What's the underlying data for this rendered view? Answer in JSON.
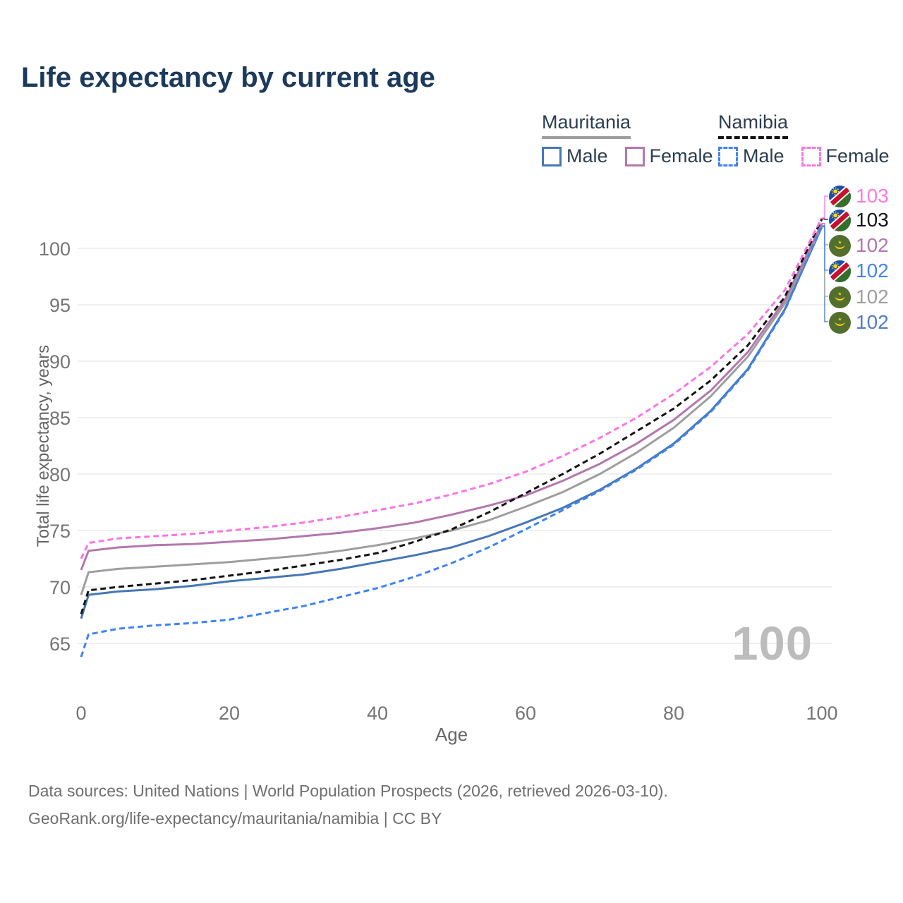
{
  "title": "Life expectancy by current age",
  "legend": {
    "groups": [
      {
        "label": "Mauritania",
        "line": "solid",
        "underline_color": "#9e9e9e",
        "items": [
          {
            "label": "Male",
            "color": "#4577b6"
          },
          {
            "label": "Female",
            "color": "#b377ae"
          }
        ]
      },
      {
        "label": "Namibia",
        "line": "dashed",
        "underline_color": "#141414",
        "items": [
          {
            "label": "Male",
            "color": "#3f83f2"
          },
          {
            "label": "Female",
            "color": "#fc74e4"
          }
        ]
      }
    ]
  },
  "chart_data": {
    "type": "line",
    "title": "Life expectancy by current age",
    "xlabel": "Age",
    "ylabel": "Total life expectancy, years",
    "xlim": [
      0,
      100
    ],
    "ylim": [
      63,
      104
    ],
    "xticks": [
      0,
      20,
      40,
      60,
      80,
      100
    ],
    "yticks": [
      65,
      70,
      75,
      80,
      85,
      90,
      95,
      100
    ],
    "grid": "horizontal",
    "legend_position": "top-right",
    "x": [
      0,
      1,
      5,
      10,
      15,
      20,
      25,
      30,
      35,
      40,
      45,
      50,
      55,
      60,
      65,
      70,
      75,
      80,
      85,
      90,
      95,
      100
    ],
    "series": [
      {
        "name": "Namibia Female",
        "country": "Namibia",
        "sex": "female",
        "line": "dashed",
        "color": "#fc74e4",
        "label_color": "#fb7ade",
        "flag": "namibia",
        "end_label": "103",
        "values": [
          72.5,
          73.9,
          74.3,
          74.5,
          74.7,
          75.0,
          75.3,
          75.7,
          76.2,
          76.8,
          77.4,
          78.2,
          79.1,
          80.2,
          81.6,
          83.2,
          85.0,
          87.1,
          89.5,
          92.4,
          96.3,
          102.7
        ]
      },
      {
        "name": "Namibia",
        "country": "Namibia",
        "sex": "both",
        "line": "dashed",
        "color": "#141414",
        "label_color": "#141414",
        "flag": "namibia",
        "end_label": "103",
        "values": [
          67.6,
          69.7,
          70.0,
          70.3,
          70.6,
          71.0,
          71.4,
          71.9,
          72.4,
          73.0,
          74.0,
          75.1,
          76.6,
          78.3,
          80.0,
          81.8,
          83.8,
          85.8,
          88.3,
          91.4,
          95.7,
          102.6
        ]
      },
      {
        "name": "Mauritania Female",
        "country": "Mauritania",
        "sex": "female",
        "line": "solid",
        "color": "#b377ae",
        "label_color": "#b377ae",
        "flag": "mauritania",
        "end_label": "102",
        "values": [
          71.5,
          73.2,
          73.5,
          73.7,
          73.8,
          74.0,
          74.2,
          74.5,
          74.8,
          75.2,
          75.7,
          76.4,
          77.2,
          78.1,
          79.4,
          80.9,
          82.7,
          84.8,
          87.4,
          90.8,
          95.4,
          102.2
        ]
      },
      {
        "name": "Namibia Male",
        "country": "Namibia",
        "sex": "male",
        "line": "dashed",
        "color": "#3f83f2",
        "label_color": "#4285f4",
        "flag": "namibia",
        "end_label": "102",
        "values": [
          63.8,
          65.8,
          66.3,
          66.6,
          66.8,
          67.1,
          67.7,
          68.3,
          69.1,
          69.9,
          70.9,
          72.1,
          73.5,
          75.1,
          76.8,
          78.5,
          80.4,
          82.6,
          85.5,
          89.2,
          94.5,
          102.0
        ]
      },
      {
        "name": "Mauritania",
        "country": "Mauritania",
        "sex": "both",
        "line": "solid",
        "color": "#9e9e9e",
        "label_color": "#9e9e9e",
        "flag": "mauritania",
        "end_label": "102",
        "values": [
          69.3,
          71.3,
          71.6,
          71.8,
          72.0,
          72.2,
          72.5,
          72.8,
          73.2,
          73.7,
          74.3,
          75.0,
          75.9,
          77.1,
          78.4,
          80.0,
          81.9,
          84.1,
          86.9,
          90.4,
          95.1,
          102.0
        ]
      },
      {
        "name": "Mauritania Male",
        "country": "Mauritania",
        "sex": "male",
        "line": "solid",
        "color": "#4577b6",
        "label_color": "#4f7dc9",
        "flag": "mauritania",
        "end_label": "102",
        "values": [
          67.2,
          69.3,
          69.6,
          69.8,
          70.1,
          70.5,
          70.8,
          71.1,
          71.6,
          72.2,
          72.8,
          73.5,
          74.5,
          75.7,
          77.0,
          78.6,
          80.5,
          82.7,
          85.6,
          89.3,
          94.6,
          101.9
        ]
      }
    ]
  },
  "watermark": "100",
  "footer": {
    "line1": "Data sources: United Nations | World Population Prospects (2026, retrieved 2026-03-10).",
    "line2": "GeoRank.org/life-expectancy/mauritania/namibia | CC BY"
  },
  "colors": {
    "title": "#1c3a5c",
    "grid": "#ebebeb",
    "tick_text": "#757575",
    "watermark": "#bcbcbc"
  }
}
